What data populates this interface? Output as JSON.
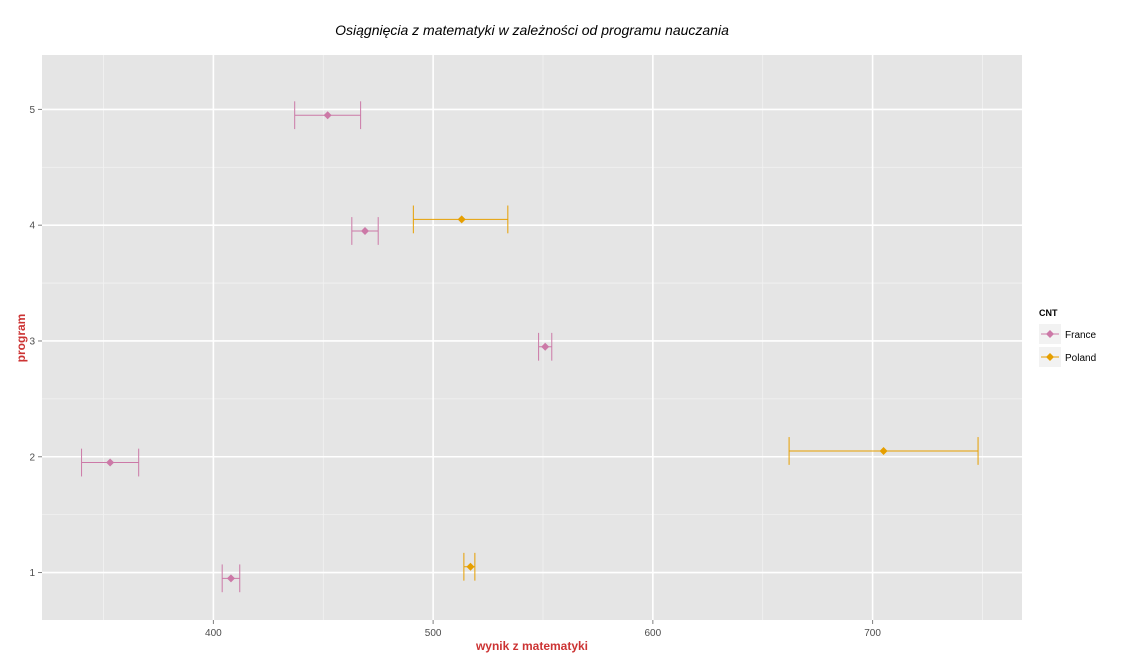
{
  "chart_data": {
    "type": "scatter",
    "title": "Osiągnięcia z matematyki w zależności od programu nauczania",
    "xlabel": "wynik z matematyki",
    "ylabel": "program",
    "xlim": [
      322,
      768
    ],
    "ylim": [
      0.59,
      5.47
    ],
    "x_ticks": [
      400,
      500,
      600,
      700
    ],
    "y_ticks": [
      1,
      2,
      3,
      4,
      5
    ],
    "grid": true,
    "legend": {
      "title": "CNT",
      "position": "right"
    },
    "series": [
      {
        "name": "France",
        "color": "#cc79a7",
        "points": [
          {
            "program": 1,
            "mean": 408,
            "low": 404,
            "high": 412
          },
          {
            "program": 2,
            "mean": 353,
            "low": 340,
            "high": 366
          },
          {
            "program": 3,
            "mean": 551,
            "low": 548,
            "high": 554
          },
          {
            "program": 4,
            "mean": 469,
            "low": 463,
            "high": 475
          },
          {
            "program": 5,
            "mean": 452,
            "low": 437,
            "high": 467
          }
        ]
      },
      {
        "name": "Poland",
        "color": "#e69f00",
        "points": [
          {
            "program": 1,
            "mean": 517,
            "low": 514,
            "high": 519
          },
          {
            "program": 2,
            "mean": 705,
            "low": 662,
            "high": 748
          },
          {
            "program": 4,
            "mean": 513,
            "low": 491,
            "high": 534
          }
        ]
      }
    ]
  }
}
